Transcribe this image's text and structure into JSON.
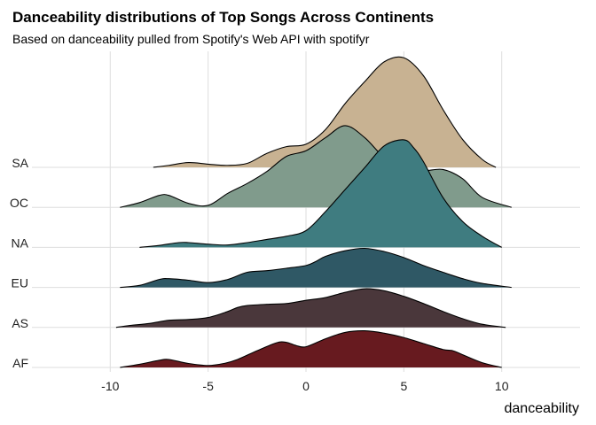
{
  "chart_data": {
    "type": "area",
    "subtype": "ridgeline",
    "title": "Danceability distributions of Top Songs Across Continents",
    "subtitle": "Based on danceability pulled from Spotify's Web API with spotifyr",
    "xlabel": "danceability",
    "ylabel": "",
    "xlim": [
      -14,
      14
    ],
    "xticks": [
      -10,
      -5,
      0,
      5,
      10
    ],
    "grid": true,
    "legend": "none",
    "categories": [
      "AF",
      "AS",
      "EU",
      "NA",
      "OC",
      "SA"
    ],
    "series": [
      {
        "name": "AF",
        "color": "#671a1f",
        "x": [
          -9.5,
          -8.5,
          -7.5,
          -7.0,
          -6.0,
          -5.0,
          -4.2,
          -3.5,
          -2.5,
          -1.5,
          -1.0,
          -0.5,
          0.0,
          1.0,
          2.0,
          3.0,
          4.0,
          5.0,
          6.0,
          7.0,
          7.5,
          8.0,
          9.0,
          10.0
        ],
        "y": [
          0.0,
          0.08,
          0.18,
          0.2,
          0.1,
          0.05,
          0.1,
          0.2,
          0.42,
          0.62,
          0.63,
          0.55,
          0.52,
          0.72,
          0.88,
          0.92,
          0.86,
          0.75,
          0.6,
          0.45,
          0.42,
          0.32,
          0.12,
          0.0
        ]
      },
      {
        "name": "AS",
        "color": "#4a373b",
        "x": [
          -9.7,
          -9.0,
          -8.0,
          -7.0,
          -6.0,
          -5.0,
          -4.0,
          -3.5,
          -3.0,
          -2.0,
          -1.0,
          0.0,
          1.0,
          2.0,
          3.0,
          4.0,
          5.0,
          6.0,
          7.0,
          8.0,
          9.0,
          10.2
        ],
        "y": [
          0.0,
          0.05,
          0.1,
          0.18,
          0.2,
          0.25,
          0.4,
          0.5,
          0.55,
          0.58,
          0.6,
          0.68,
          0.75,
          0.88,
          0.97,
          0.92,
          0.78,
          0.6,
          0.4,
          0.22,
          0.08,
          0.0
        ]
      },
      {
        "name": "EU",
        "color": "#2f5865",
        "x": [
          -9.5,
          -8.5,
          -7.5,
          -7.0,
          -6.0,
          -5.0,
          -4.0,
          -3.0,
          -2.0,
          -1.0,
          0.0,
          0.5,
          1.0,
          2.0,
          3.0,
          4.0,
          5.0,
          6.0,
          7.0,
          8.0,
          9.0,
          10.5
        ],
        "y": [
          0.0,
          0.05,
          0.2,
          0.22,
          0.18,
          0.12,
          0.2,
          0.38,
          0.42,
          0.48,
          0.55,
          0.65,
          0.78,
          0.92,
          0.98,
          0.9,
          0.75,
          0.55,
          0.38,
          0.22,
          0.1,
          0.0
        ]
      },
      {
        "name": "NA",
        "color": "#3f7c80",
        "x": [
          -8.5,
          -7.5,
          -6.5,
          -6.0,
          -5.0,
          -4.0,
          -3.0,
          -2.0,
          -1.0,
          0.0,
          1.0,
          2.0,
          3.0,
          4.0,
          5.0,
          5.5,
          6.0,
          7.0,
          8.0,
          9.0,
          10.0
        ],
        "y": [
          0.0,
          0.05,
          0.12,
          0.12,
          0.08,
          0.06,
          0.12,
          0.2,
          0.28,
          0.42,
          0.9,
          1.45,
          2.0,
          2.55,
          2.7,
          2.5,
          2.15,
          1.25,
          0.65,
          0.28,
          0.0
        ]
      },
      {
        "name": "OC",
        "color": "#809b8c",
        "x": [
          -9.5,
          -8.5,
          -7.5,
          -7.0,
          -6.0,
          -5.0,
          -4.0,
          -3.0,
          -2.0,
          -1.0,
          0.0,
          1.0,
          2.0,
          3.0,
          4.0,
          5.0,
          6.0,
          7.0,
          8.0,
          9.0,
          10.5
        ],
        "y": [
          0.0,
          0.12,
          0.3,
          0.3,
          0.1,
          0.05,
          0.35,
          0.6,
          0.9,
          1.28,
          1.42,
          1.75,
          2.05,
          1.75,
          1.25,
          1.0,
          0.92,
          0.95,
          0.72,
          0.25,
          0.0
        ]
      },
      {
        "name": "SA",
        "color": "#c8b292",
        "x": [
          -7.8,
          -7.0,
          -6.0,
          -5.0,
          -4.0,
          -3.0,
          -2.0,
          -1.0,
          0.0,
          1.0,
          2.0,
          3.0,
          4.0,
          5.0,
          6.0,
          7.0,
          8.0,
          9.0,
          9.7
        ],
        "y": [
          0.0,
          0.05,
          0.12,
          0.08,
          0.05,
          0.1,
          0.35,
          0.52,
          0.58,
          0.95,
          1.6,
          2.15,
          2.65,
          2.75,
          2.3,
          1.45,
          0.7,
          0.2,
          0.0
        ]
      }
    ]
  }
}
